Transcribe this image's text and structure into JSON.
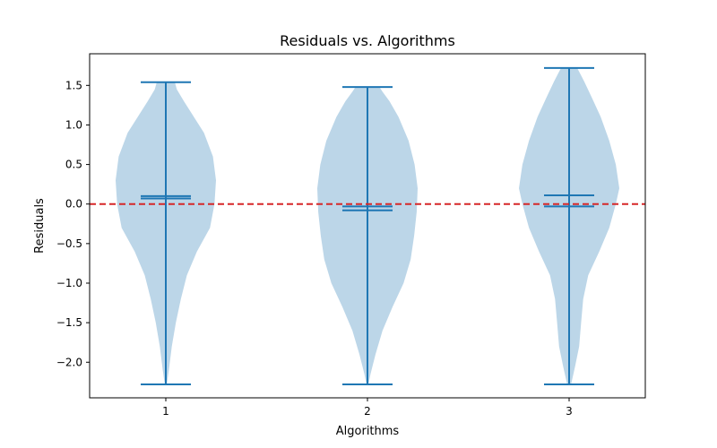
{
  "chart_data": {
    "type": "violin",
    "title": "Residuals vs. Algorithms",
    "xlabel": "Algorithms",
    "ylabel": "Residuals",
    "categories": [
      "1",
      "2",
      "3"
    ],
    "ylim": [
      -2.45,
      1.9
    ],
    "yticks": [
      -2.0,
      -1.5,
      -1.0,
      -0.5,
      0.0,
      0.5,
      1.0,
      1.5
    ],
    "ytick_labels": [
      "−2.0",
      "−1.5",
      "−1.0",
      "−0.5",
      "0.0",
      "0.5",
      "1.0",
      "1.5"
    ],
    "grid": false,
    "reference_line": {
      "y": 0.0,
      "style": "dashed",
      "color": "#d62728"
    },
    "colors": {
      "body": "#bcd6e8",
      "lines": "#1f77b4"
    },
    "violins": [
      {
        "category": "1",
        "min": -2.28,
        "max": 1.54,
        "mean": 0.1,
        "median": 0.07,
        "profile": [
          [
            -2.28,
            0.02
          ],
          [
            -2.1,
            0.06
          ],
          [
            -1.8,
            0.12
          ],
          [
            -1.5,
            0.2
          ],
          [
            -1.2,
            0.3
          ],
          [
            -0.9,
            0.42
          ],
          [
            -0.6,
            0.62
          ],
          [
            -0.3,
            0.88
          ],
          [
            0.0,
            0.97
          ],
          [
            0.3,
            1.0
          ],
          [
            0.6,
            0.94
          ],
          [
            0.9,
            0.76
          ],
          [
            1.1,
            0.56
          ],
          [
            1.3,
            0.36
          ],
          [
            1.45,
            0.22
          ],
          [
            1.54,
            0.18
          ]
        ]
      },
      {
        "category": "2",
        "min": -2.28,
        "max": 1.48,
        "mean": -0.03,
        "median": -0.08,
        "profile": [
          [
            -2.28,
            0.02
          ],
          [
            -2.15,
            0.06
          ],
          [
            -1.9,
            0.16
          ],
          [
            -1.6,
            0.3
          ],
          [
            -1.3,
            0.5
          ],
          [
            -1.0,
            0.72
          ],
          [
            -0.7,
            0.86
          ],
          [
            -0.4,
            0.93
          ],
          [
            -0.1,
            0.98
          ],
          [
            0.2,
            1.0
          ],
          [
            0.5,
            0.94
          ],
          [
            0.8,
            0.82
          ],
          [
            1.1,
            0.62
          ],
          [
            1.3,
            0.44
          ],
          [
            1.42,
            0.3
          ],
          [
            1.48,
            0.24
          ]
        ]
      },
      {
        "category": "3",
        "min": -2.28,
        "max": 1.72,
        "mean": 0.11,
        "median": -0.03,
        "profile": [
          [
            -2.28,
            0.04
          ],
          [
            -2.05,
            0.12
          ],
          [
            -1.8,
            0.2
          ],
          [
            -1.5,
            0.24
          ],
          [
            -1.2,
            0.28
          ],
          [
            -0.9,
            0.38
          ],
          [
            -0.6,
            0.6
          ],
          [
            -0.3,
            0.8
          ],
          [
            0.0,
            0.93
          ],
          [
            0.2,
            1.0
          ],
          [
            0.5,
            0.93
          ],
          [
            0.8,
            0.8
          ],
          [
            1.1,
            0.63
          ],
          [
            1.35,
            0.45
          ],
          [
            1.55,
            0.3
          ],
          [
            1.65,
            0.22
          ],
          [
            1.72,
            0.16
          ]
        ]
      }
    ]
  }
}
